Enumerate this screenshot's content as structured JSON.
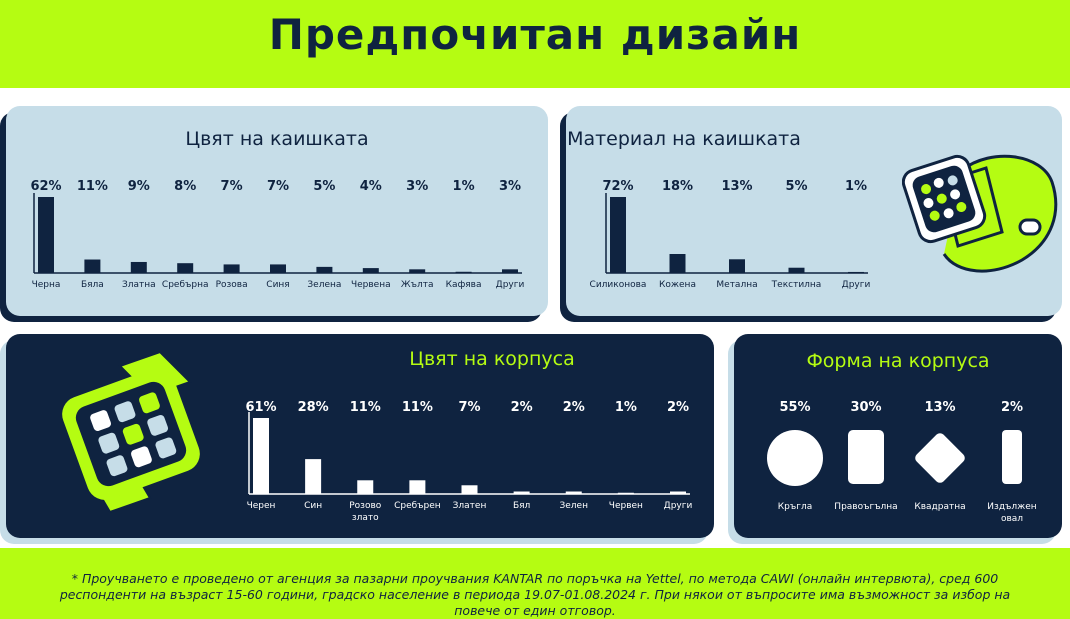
{
  "title": "Предпочитан дизайн",
  "footnote": "* Проучването е проведено от агенция за пазарни проучвания KANTAR по поръчка на Yettel, по метода CAWI (онлайн интервюта), сред 600 респонденти на възраст 15-60 години, градско население в периода 19.07-01.08.2024 г. При някои от въпросите има възможност за избор на повече от един отговор.",
  "colors": {
    "lime": "#b5fc12",
    "navy": "#0f2340",
    "light_blue": "#c6dde8",
    "white": "#ffffff"
  },
  "icons": {
    "watch_strap": "smartwatch-strap-icon",
    "watch_case": "smartwatch-case-icon"
  },
  "chart_data": [
    {
      "type": "bar",
      "title": "Цвят на каишката",
      "categories": [
        "Черна",
        "Бяла",
        "Златна",
        "Сребърна",
        "Розова",
        "Синя",
        "Зелена",
        "Червена",
        "Жълта",
        "Кафява",
        "Други"
      ],
      "values": [
        62,
        11,
        9,
        8,
        7,
        7,
        5,
        4,
        3,
        1,
        3
      ],
      "value_labels": [
        "62%",
        "11%",
        "9%",
        "8%",
        "7%",
        "7%",
        "5%",
        "4%",
        "3%",
        "1%",
        "3%"
      ],
      "unit": "%"
    },
    {
      "type": "bar",
      "title": "Материал на каишката",
      "categories": [
        "Силиконова",
        "Кожена",
        "Метална",
        "Текстилна",
        "Други"
      ],
      "values": [
        72,
        18,
        13,
        5,
        1
      ],
      "value_labels": [
        "72%",
        "18%",
        "13%",
        "5%",
        "1%"
      ],
      "unit": "%"
    },
    {
      "type": "bar",
      "title": "Цвят на корпуса",
      "categories": [
        "Черен",
        "Син",
        "Розово злато",
        "Сребърен",
        "Златен",
        "Бял",
        "Зелен",
        "Червен",
        "Други"
      ],
      "values": [
        61,
        28,
        11,
        11,
        7,
        2,
        2,
        1,
        2
      ],
      "value_labels": [
        "61%",
        "28%",
        "11%",
        "11%",
        "7%",
        "2%",
        "2%",
        "1%",
        "2%"
      ],
      "unit": "%"
    },
    {
      "type": "bar",
      "title": "Форма на корпуса",
      "categories": [
        "Кръгла",
        "Правоъгълна",
        "Квадратна",
        "Издължен овал"
      ],
      "values": [
        55,
        30,
        13,
        2
      ],
      "value_labels": [
        "55%",
        "30%",
        "13%",
        "2%"
      ],
      "unit": "%",
      "shapes": [
        "circle",
        "rounded-rectangle",
        "diamond",
        "oval"
      ]
    }
  ]
}
